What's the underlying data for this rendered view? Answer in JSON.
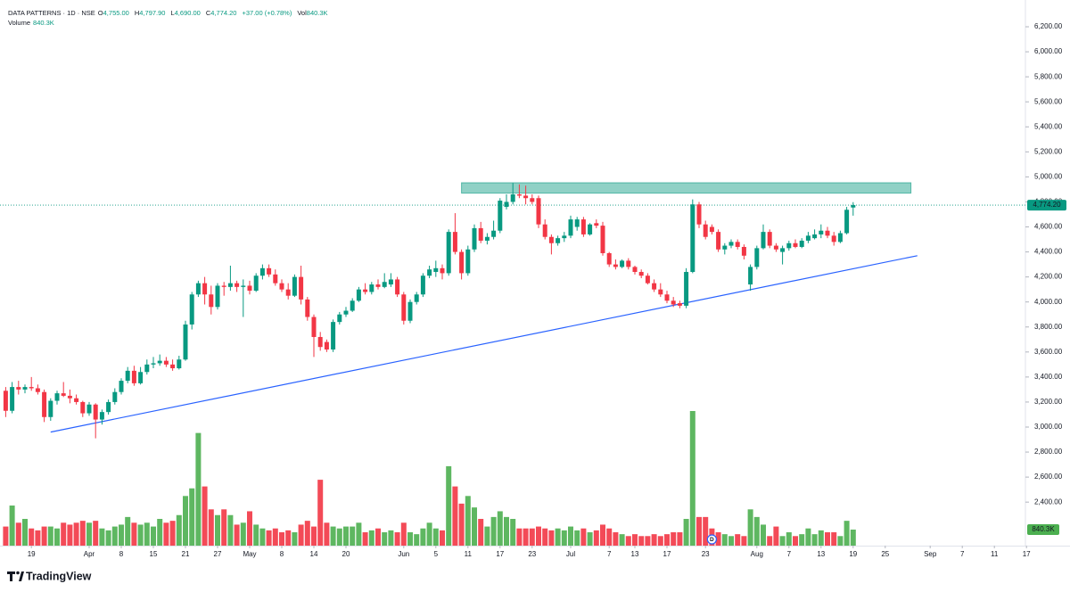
{
  "chart_data": {
    "type": "candlestick",
    "symbol": "DATA PATTERNS · 1D · NSE",
    "header": [
      {
        "label": "O",
        "value": "4,755.00"
      },
      {
        "label": "H",
        "value": "4,797.90"
      },
      {
        "label": "L",
        "value": "4,690.00"
      },
      {
        "label": "C",
        "value": "4,774.20"
      },
      {
        "label": "",
        "value": "+37.00 (+0.78%)"
      },
      {
        "label": "Vol",
        "value": "840.3K"
      }
    ],
    "volume_title": "Volume",
    "volume_title_value": "840.3K",
    "open": [
      3290,
      3130,
      3320,
      3300,
      3320,
      3310,
      3280,
      3080,
      3210,
      3270,
      3250,
      3230,
      3200,
      3110,
      3180,
      3060,
      3120,
      3200,
      3280,
      3370,
      3450,
      3350,
      3440,
      3500,
      3510,
      3530,
      3500,
      3470,
      3540,
      3820,
      4060,
      4150,
      4060,
      3960,
      4130,
      4120,
      4150,
      4120,
      4130,
      4090,
      4210,
      4270,
      4220,
      4150,
      4100,
      4050,
      4200,
      4020,
      3880,
      3720,
      3680,
      3620,
      3840,
      3900,
      3930,
      4010,
      4100,
      4080,
      4140,
      4120,
      4140,
      4180,
      4060,
      3850,
      4000,
      4060,
      4210,
      4240,
      4270,
      4230,
      4560,
      4400,
      4230,
      4420,
      4590,
      4490,
      4520,
      4570,
      4760,
      4800,
      4860,
      4850,
      4830,
      4830,
      4620,
      4520,
      4470,
      4510,
      4530,
      4600,
      4660,
      4540,
      4630,
      4610,
      4390,
      4300,
      4280,
      4330,
      4280,
      4240,
      4210,
      4150,
      4100,
      4060,
      4010,
      3990,
      3970,
      4240,
      4780,
      4620,
      4600,
      4560,
      4420,
      4450,
      4480,
      4440,
      4140,
      4280,
      4430,
      4560,
      4450,
      4400,
      4430,
      4470,
      4440,
      4490,
      4510,
      4540,
      4570,
      4530,
      4480,
      4550,
      4755
    ],
    "high": [
      3320,
      3360,
      3370,
      3340,
      3400,
      3340,
      3300,
      3230,
      3290,
      3360,
      3300,
      3260,
      3210,
      3200,
      3190,
      3140,
      3220,
      3310,
      3390,
      3480,
      3490,
      3480,
      3540,
      3560,
      3580,
      3560,
      3540,
      3570,
      3850,
      4080,
      4170,
      4200,
      4130,
      4150,
      4160,
      4290,
      4170,
      4180,
      4170,
      4230,
      4300,
      4300,
      4260,
      4180,
      4150,
      4220,
      4290,
      4040,
      3900,
      3760,
      3700,
      3860,
      3920,
      3960,
      4030,
      4120,
      4150,
      4160,
      4180,
      4230,
      4230,
      4200,
      4080,
      4020,
      4080,
      4230,
      4290,
      4330,
      4300,
      4580,
      4710,
      4420,
      4450,
      4620,
      4640,
      4550,
      4650,
      4830,
      4860,
      4950,
      4940,
      4930,
      4860,
      4850,
      4660,
      4540,
      4530,
      4560,
      4690,
      4680,
      4680,
      4630,
      4660,
      4640,
      4400,
      4340,
      4340,
      4350,
      4290,
      4260,
      4230,
      4180,
      4150,
      4090,
      4040,
      4010,
      4270,
      4820,
      4800,
      4650,
      4620,
      4580,
      4470,
      4500,
      4500,
      4460,
      4300,
      4450,
      4620,
      4580,
      4470,
      4450,
      4490,
      4500,
      4510,
      4560,
      4580,
      4620,
      4600,
      4560,
      4570,
      4760,
      4797.9
    ],
    "low": [
      3080,
      3110,
      3260,
      3270,
      3290,
      3260,
      3040,
      3050,
      3180,
      3240,
      3190,
      3180,
      3080,
      3090,
      2910,
      3020,
      3100,
      3180,
      3260,
      3350,
      3330,
      3340,
      3420,
      3470,
      3490,
      3480,
      3450,
      3460,
      3530,
      3780,
      4040,
      3980,
      3900,
      3940,
      4050,
      4090,
      4080,
      3880,
      4060,
      4080,
      4180,
      4200,
      4130,
      4080,
      4020,
      4040,
      3980,
      3850,
      3560,
      3610,
      3600,
      3600,
      3820,
      3880,
      3920,
      4000,
      4060,
      4060,
      4100,
      4110,
      4120,
      4040,
      3820,
      3830,
      3980,
      4040,
      4190,
      4200,
      4180,
      4210,
      4380,
      4180,
      4210,
      4400,
      4470,
      4460,
      4500,
      4550,
      4740,
      4780,
      4830,
      4780,
      4780,
      4590,
      4500,
      4380,
      4450,
      4480,
      4510,
      4570,
      4520,
      4530,
      4590,
      4370,
      4280,
      4260,
      4270,
      4260,
      4220,
      4190,
      4140,
      4080,
      4040,
      3990,
      3960,
      3950,
      3950,
      4230,
      4590,
      4500,
      4540,
      4400,
      4380,
      4430,
      4420,
      4340,
      4090,
      4260,
      4420,
      4430,
      4400,
      4300,
      4410,
      4430,
      4430,
      4470,
      4500,
      4510,
      4510,
      4450,
      4470,
      4540,
      4690
    ],
    "close": [
      3130,
      3320,
      3300,
      3320,
      3310,
      3280,
      3080,
      3210,
      3270,
      3250,
      3230,
      3200,
      3110,
      3180,
      3060,
      3120,
      3200,
      3280,
      3370,
      3450,
      3350,
      3440,
      3500,
      3510,
      3530,
      3500,
      3470,
      3540,
      3820,
      4060,
      4150,
      4060,
      3960,
      4130,
      4120,
      4150,
      4120,
      4130,
      4090,
      4210,
      4270,
      4220,
      4150,
      4100,
      4050,
      4200,
      4020,
      3880,
      3720,
      3640,
      3620,
      3840,
      3900,
      3930,
      4010,
      4100,
      4080,
      4140,
      4120,
      4160,
      4180,
      4060,
      3850,
      4000,
      4060,
      4210,
      4260,
      4270,
      4230,
      4560,
      4400,
      4230,
      4420,
      4590,
      4490,
      4520,
      4570,
      4810,
      4800,
      4860,
      4850,
      4830,
      4800,
      4620,
      4520,
      4470,
      4510,
      4530,
      4660,
      4660,
      4540,
      4620,
      4610,
      4390,
      4300,
      4280,
      4330,
      4280,
      4240,
      4210,
      4150,
      4100,
      4060,
      4010,
      3980,
      3970,
      4240,
      4780,
      4620,
      4520,
      4560,
      4420,
      4450,
      4480,
      4440,
      4370,
      4280,
      4430,
      4560,
      4450,
      4420,
      4430,
      4470,
      4440,
      4490,
      4530,
      4540,
      4570,
      4530,
      4480,
      4550,
      4737,
      4774.2
    ],
    "volume": [
      1000000,
      2100000,
      1200000,
      1400000,
      900000,
      800000,
      1000000,
      1000000,
      900000,
      1200000,
      1100000,
      1200000,
      1300000,
      1200000,
      1300000,
      900000,
      800000,
      1000000,
      1100000,
      1500000,
      1200000,
      1100000,
      1200000,
      1000000,
      1400000,
      1200000,
      1300000,
      1600000,
      2600000,
      3000000,
      5900000,
      3100000,
      1900000,
      1600000,
      1900000,
      1600000,
      1100000,
      1200000,
      1800000,
      1100000,
      900000,
      800000,
      900000,
      700000,
      800000,
      700000,
      1100000,
      1300000,
      1000000,
      3450000,
      1200000,
      1000000,
      900000,
      1000000,
      1000000,
      1200000,
      700000,
      800000,
      900000,
      700000,
      800000,
      700000,
      1200000,
      700000,
      600000,
      900000,
      1200000,
      900000,
      800000,
      4160000,
      3100000,
      2200000,
      2600000,
      2000000,
      1400000,
      1000000,
      1500000,
      1800000,
      1500000,
      1400000,
      900000,
      900000,
      900000,
      1000000,
      900000,
      800000,
      900000,
      800000,
      1000000,
      800000,
      900000,
      700000,
      800000,
      1100000,
      900000,
      700000,
      600000,
      500000,
      600000,
      500000,
      500000,
      600000,
      500000,
      600000,
      700000,
      700000,
      1400000,
      7050000,
      1500000,
      1500000,
      900000,
      700000,
      600000,
      500000,
      600000,
      500000,
      1900000,
      1500000,
      1100000,
      500000,
      1000000,
      500000,
      700000,
      500000,
      600000,
      900000,
      600000,
      800000,
      700000,
      700000,
      500000,
      1300000,
      840300
    ],
    "last_close_label": "4,774.20",
    "last_volume_label": "840.3K",
    "up_color": "#089981",
    "down_color": "#f23645",
    "volume_up_color": "#4caf50",
    "volume_down_color": "#f23645",
    "ylim": [
      2052,
      6414
    ],
    "yticks": [
      {
        "value": 6200,
        "label": "6,200.00"
      },
      {
        "value": 6000,
        "label": "6,000.00"
      },
      {
        "value": 5800,
        "label": "5,800.00"
      },
      {
        "value": 5600,
        "label": "5,600.00"
      },
      {
        "value": 5400,
        "label": "5,400.00"
      },
      {
        "value": 5200,
        "label": "5,200.00"
      },
      {
        "value": 5000,
        "label": "5,000.00"
      },
      {
        "value": 4800,
        "label": "4,800.00"
      },
      {
        "value": 4600,
        "label": "4,600.00"
      },
      {
        "value": 4400,
        "label": "4,400.00"
      },
      {
        "value": 4200,
        "label": "4,200.00"
      },
      {
        "value": 4000,
        "label": "4,000.00"
      },
      {
        "value": 3800,
        "label": "3,800.00"
      },
      {
        "value": 3600,
        "label": "3,600.00"
      },
      {
        "value": 3400,
        "label": "3,400.00"
      },
      {
        "value": 3200,
        "label": "3,200.00"
      },
      {
        "value": 3000,
        "label": "3,000.00"
      },
      {
        "value": 2800,
        "label": "2,800.00"
      },
      {
        "value": 2600,
        "label": "2,600.00"
      },
      {
        "value": 2400,
        "label": "2,400.00"
      }
    ],
    "x_labels": [
      {
        "index": 4,
        "label": "19"
      },
      {
        "index": 13,
        "label": "Apr"
      },
      {
        "index": 18,
        "label": "8"
      },
      {
        "index": 23,
        "label": "15"
      },
      {
        "index": 28,
        "label": "21"
      },
      {
        "index": 33,
        "label": "27"
      },
      {
        "index": 38,
        "label": "May"
      },
      {
        "index": 43,
        "label": "8"
      },
      {
        "index": 48,
        "label": "14"
      },
      {
        "index": 53,
        "label": "20"
      },
      {
        "index": 62,
        "label": "Jun"
      },
      {
        "index": 67,
        "label": "5"
      },
      {
        "index": 72,
        "label": "11"
      },
      {
        "index": 77,
        "label": "17"
      },
      {
        "index": 82,
        "label": "23"
      },
      {
        "index": 88,
        "label": "Jul"
      },
      {
        "index": 94,
        "label": "7"
      },
      {
        "index": 98,
        "label": "13"
      },
      {
        "index": 103,
        "label": "17"
      },
      {
        "index": 109,
        "label": "23"
      },
      {
        "index": 117,
        "label": "Aug"
      },
      {
        "index": 122,
        "label": "7"
      },
      {
        "index": 127,
        "label": "13"
      },
      {
        "index": 132,
        "label": "19"
      },
      {
        "index": 137,
        "label": "25"
      },
      {
        "index": 144,
        "label": "Sep"
      },
      {
        "index": 149,
        "label": "7"
      },
      {
        "index": 154,
        "label": "11"
      },
      {
        "index": 159,
        "label": "17"
      }
    ],
    "zone": {
      "start": 71,
      "end": 141,
      "low": 4870,
      "high": 4953,
      "color": "#089981"
    },
    "trendline": {
      "start": [
        7,
        2960
      ],
      "end": [
        142,
        4370
      ],
      "color": "#2962ff"
    },
    "events": [
      {
        "index": 110,
        "label": "D"
      }
    ],
    "brand": "TradingView"
  }
}
